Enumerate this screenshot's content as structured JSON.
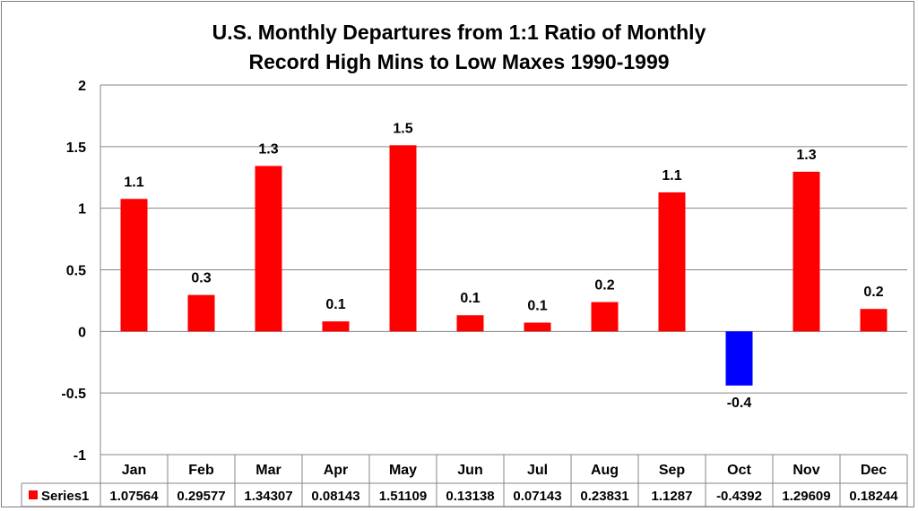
{
  "chart_data": {
    "type": "bar",
    "title_line1": "U.S. Monthly Departures from 1:1 Ratio of Monthly",
    "title_line2": "Record High Mins to Low Maxes 1990-1999",
    "categories": [
      "Jan",
      "Feb",
      "Mar",
      "Apr",
      "May",
      "Jun",
      "Jul",
      "Aug",
      "Sep",
      "Oct",
      "Nov",
      "Dec"
    ],
    "series": [
      {
        "name": "Series1",
        "values": [
          1.07564,
          0.29577,
          1.34307,
          0.08143,
          1.51109,
          0.13138,
          0.07143,
          0.23831,
          1.1287,
          -0.4392,
          1.29609,
          0.18244
        ],
        "value_strings": [
          "1.07564",
          "0.29577",
          "1.34307",
          "0.08143",
          "1.51109",
          "0.13138",
          "0.07143",
          "0.23831",
          "1.1287",
          "-0.4392",
          "1.29609",
          "0.18244"
        ],
        "data_labels": [
          "1.1",
          "0.3",
          "1.3",
          "0.1",
          "1.5",
          "0.1",
          "0.1",
          "0.2",
          "1.1",
          "-0.4",
          "1.3",
          "0.2"
        ]
      }
    ],
    "ylim": [
      -1,
      2
    ],
    "yticks": [
      "2",
      "1.5",
      "1",
      "0.5",
      "0",
      "-0.5",
      "-1"
    ],
    "ytick_values": [
      2,
      1.5,
      1,
      0.5,
      0,
      -0.5,
      -1
    ],
    "positive_color": "#ff0000",
    "negative_color": "#0000ff",
    "gridlines": true,
    "legend": "data-table"
  }
}
